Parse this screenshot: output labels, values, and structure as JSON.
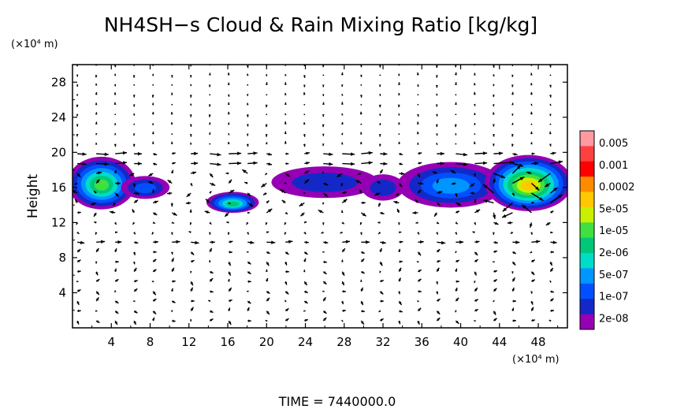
{
  "chart_data": {
    "type": "heatmap",
    "title": "NH4SH−s Cloud & Rain Mixing Ratio [kg/kg]",
    "ylabel": "Height",
    "y_unit": "(×10⁴ m)",
    "x_unit": "(×10⁴ m)",
    "time_label": "TIME  =  7440000.0",
    "xlim": [
      0,
      51
    ],
    "ylim": [
      0,
      30
    ],
    "x_ticks": [
      4,
      8,
      12,
      16,
      20,
      24,
      28,
      32,
      36,
      40,
      44,
      48
    ],
    "y_ticks": [
      4,
      8,
      12,
      16,
      20,
      24,
      28
    ],
    "x_ticklabels": [
      "4",
      "8",
      "12",
      "16",
      "20",
      "24",
      "28",
      "32",
      "36",
      "40",
      "44",
      "48"
    ],
    "y_ticklabels": [
      "4",
      "8",
      "12",
      "16",
      "20",
      "24",
      "28"
    ],
    "colorbar": {
      "labels": [
        "0.005",
        "0.001",
        "0.0002",
        "5e-05",
        "1e-05",
        "2e-06",
        "5e-07",
        "1e-07",
        "2e-08"
      ],
      "colors": [
        "#ff9aa0",
        "#ff4040",
        "#ff0000",
        "#ff8c00",
        "#ffc800",
        "#c8f000",
        "#40e040",
        "#00c878",
        "#00dcc8",
        "#0096ff",
        "#0050ff",
        "#1428c8",
        "#9600b4"
      ]
    },
    "regions": [
      {
        "name": "left-cloud",
        "cx": 3,
        "cy": 16.5,
        "rx": 3.5,
        "ry": 3,
        "level": 6
      },
      {
        "name": "left-arm",
        "cx": 7.5,
        "cy": 16,
        "rx": 2.5,
        "ry": 1.3,
        "level": 2
      },
      {
        "name": "small-blob",
        "cx": 16.5,
        "cy": 14.3,
        "rx": 2.7,
        "ry": 1.2,
        "level": 5
      },
      {
        "name": "middle-band",
        "cx": 26,
        "cy": 16.6,
        "rx": 5.5,
        "ry": 1.8,
        "level": 1
      },
      {
        "name": "middle-east",
        "cx": 32,
        "cy": 16,
        "rx": 2.2,
        "ry": 1.5,
        "level": 1
      },
      {
        "name": "right-band",
        "cx": 39,
        "cy": 16.3,
        "rx": 5.5,
        "ry": 2.6,
        "level": 3
      },
      {
        "name": "right-core",
        "cx": 47,
        "cy": 16.5,
        "rx": 4.5,
        "ry": 3.2,
        "level": 8
      }
    ]
  }
}
